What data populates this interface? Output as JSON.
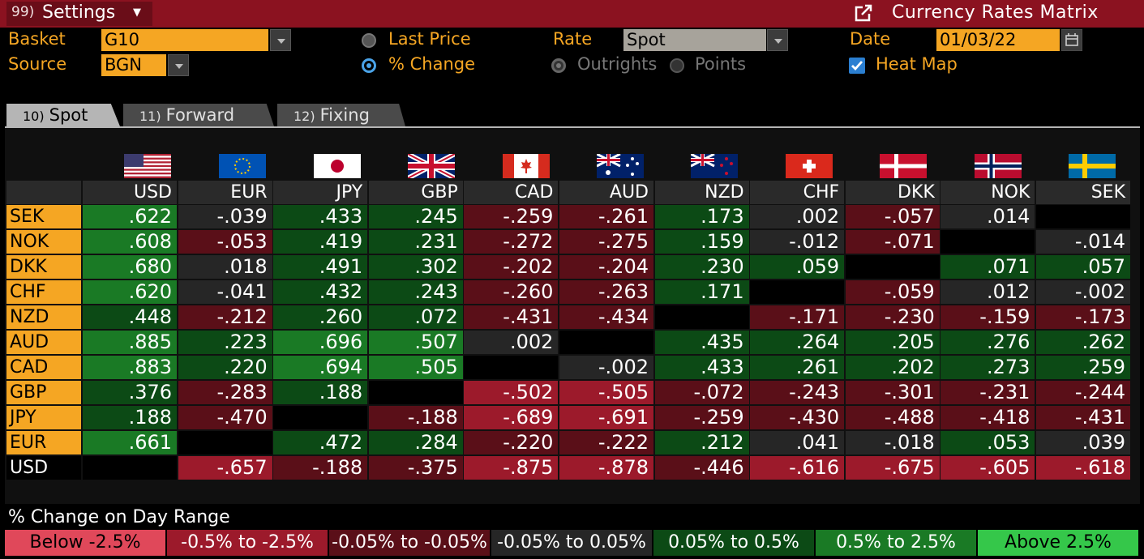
{
  "header": {
    "settings_num": "99)",
    "settings_label": "Settings",
    "title": "Currency Rates Matrix",
    "title_icon": "export-icon"
  },
  "controls": {
    "basket_label": "Basket",
    "basket_value": "G10",
    "source_label": "Source",
    "source_value": "BGN",
    "last_price_label": "Last Price",
    "pct_change_label": "% Change",
    "rate_label": "Rate",
    "rate_value": "Spot",
    "outrights_label": "Outrights",
    "points_label": "Points",
    "date_label": "Date",
    "date_value": "01/03/22",
    "heatmap_label": "Heat Map",
    "heatmap_checked": true
  },
  "tabs": [
    {
      "num": "10)",
      "label": "Spot",
      "active": true
    },
    {
      "num": "11)",
      "label": "Forward",
      "active": false
    },
    {
      "num": "12)",
      "label": "Fixing",
      "active": false
    }
  ],
  "matrix": {
    "columns": [
      "USD",
      "EUR",
      "JPY",
      "GBP",
      "CAD",
      "AUD",
      "NZD",
      "CHF",
      "DKK",
      "NOK",
      "SEK"
    ],
    "rows": [
      {
        "label": "SEK",
        "cells": [
          ".622",
          "-.039",
          ".433",
          ".245",
          "-.259",
          "-.261",
          ".173",
          ".002",
          "-.057",
          ".014",
          ""
        ]
      },
      {
        "label": "NOK",
        "cells": [
          ".608",
          "-.053",
          ".419",
          ".231",
          "-.272",
          "-.275",
          ".159",
          "-.012",
          "-.071",
          "",
          "-.014"
        ]
      },
      {
        "label": "DKK",
        "cells": [
          ".680",
          ".018",
          ".491",
          ".302",
          "-.202",
          "-.204",
          ".230",
          ".059",
          "",
          ".071",
          ".057"
        ]
      },
      {
        "label": "CHF",
        "cells": [
          ".620",
          "-.041",
          ".432",
          ".243",
          "-.260",
          "-.263",
          ".171",
          "",
          "-.059",
          ".012",
          "-.002"
        ]
      },
      {
        "label": "NZD",
        "cells": [
          ".448",
          "-.212",
          ".260",
          ".072",
          "-.431",
          "-.434",
          "",
          "-.171",
          "-.230",
          "-.159",
          "-.173"
        ]
      },
      {
        "label": "AUD",
        "cells": [
          ".885",
          ".223",
          ".696",
          ".507",
          ".002",
          "",
          ".435",
          ".264",
          ".205",
          ".276",
          ".262"
        ]
      },
      {
        "label": "CAD",
        "cells": [
          ".883",
          ".220",
          ".694",
          ".505",
          "",
          "-.002",
          ".433",
          ".261",
          ".202",
          ".273",
          ".259"
        ]
      },
      {
        "label": "GBP",
        "cells": [
          ".376",
          "-.283",
          ".188",
          "",
          "-.502",
          "-.505",
          "-.072",
          "-.243",
          "-.301",
          "-.231",
          "-.244"
        ]
      },
      {
        "label": "JPY",
        "cells": [
          ".188",
          "-.470",
          "",
          "-.188",
          "-.689",
          "-.691",
          "-.259",
          "-.430",
          "-.488",
          "-.418",
          "-.431"
        ]
      },
      {
        "label": "EUR",
        "cells": [
          ".661",
          "",
          ".472",
          ".284",
          "-.220",
          "-.222",
          ".212",
          ".041",
          "-.018",
          ".053",
          ".039"
        ]
      },
      {
        "label": "USD",
        "cells": [
          "",
          "-.657",
          "-.188",
          "-.375",
          "-.875",
          "-.878",
          "-.446",
          "-.616",
          "-.675",
          "-.605",
          "-.618"
        ]
      }
    ]
  },
  "legend": {
    "title": "% Change on Day Range",
    "items": [
      {
        "label": "Below -2.5%",
        "color": "#e0485a",
        "text_color": "#000000"
      },
      {
        "label": "-0.5% to -2.5%",
        "color": "#9c1a2b",
        "text_color": "#ffffff"
      },
      {
        "label": "-0.05% to -0.05%",
        "color": "#5a0f18",
        "text_color": "#ffffff"
      },
      {
        "label": "-0.05% to 0.05%",
        "color": "#262626",
        "text_color": "#ffffff"
      },
      {
        "label": "0.05% to 0.5%",
        "color": "#0c4a15",
        "text_color": "#ffffff"
      },
      {
        "label": "0.5% to 2.5%",
        "color": "#1a7a25",
        "text_color": "#ffffff"
      },
      {
        "label": "Above 2.5%",
        "color": "#35c74a",
        "text_color": "#000000"
      }
    ]
  },
  "colors": {
    "orange": "#f5a623",
    "title_red": "#8b1220"
  }
}
